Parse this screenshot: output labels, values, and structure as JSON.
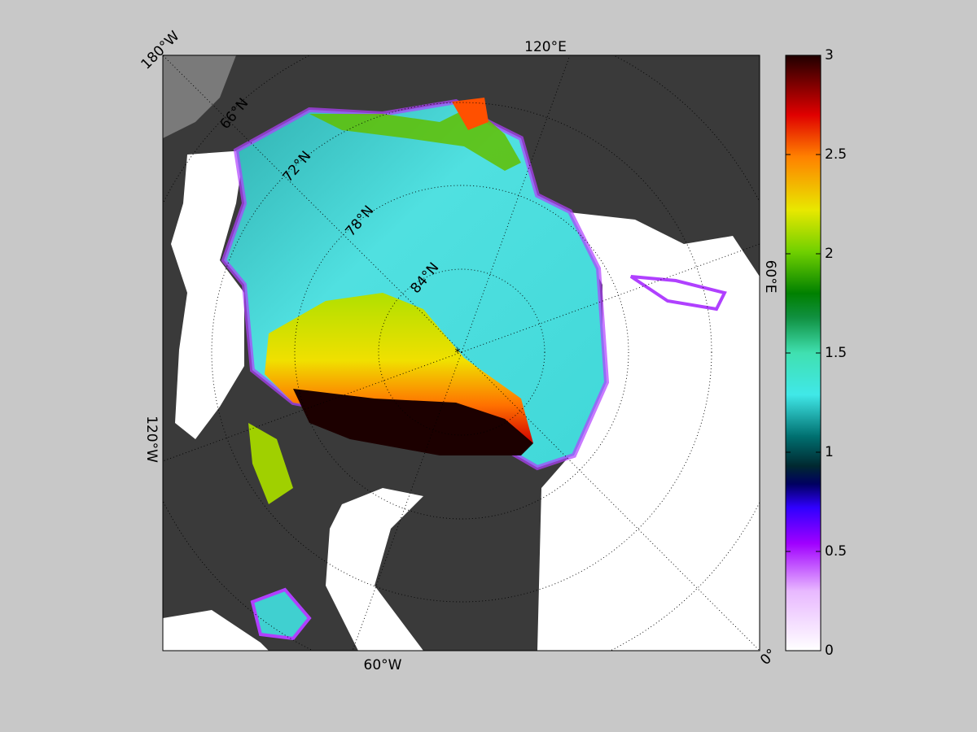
{
  "map": {
    "longitude_labels": [
      "180°W",
      "120°E",
      "60°E",
      "0°",
      "60°W",
      "120°W"
    ],
    "latitude_labels": [
      "66°N",
      "72°N",
      "78°N",
      "84°N"
    ]
  },
  "colorbar": {
    "ylim": [
      0,
      3
    ],
    "yticks": [
      0,
      0.5,
      1,
      1.5,
      2,
      2.5,
      3
    ]
  }
}
